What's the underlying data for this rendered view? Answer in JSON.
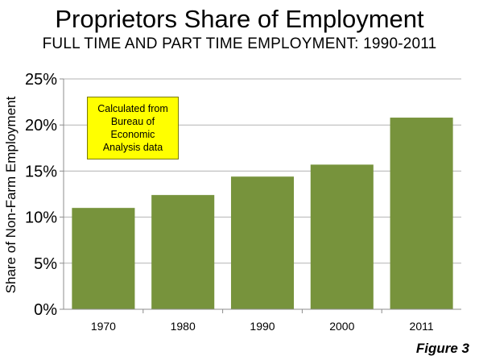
{
  "header": {
    "title": "Proprietors Share of Employment",
    "subtitle": "FULL TIME AND PART TIME EMPLOYMENT:  1990-2011"
  },
  "annotation": {
    "text": "Calculated from Bureau of Economic Analysis data",
    "lines": [
      "Calculated from",
      "Bureau of",
      "Economic",
      "Analysis data"
    ],
    "color": "#ffff00"
  },
  "figure_label": "Figure 3",
  "chart_data": {
    "type": "bar",
    "title": "Proprietors Share of Employment",
    "subtitle": "FULL TIME AND PART TIME EMPLOYMENT:  1990-2011",
    "xlabel": "",
    "ylabel": "Share of Non-Farm Employment",
    "categories": [
      "1970",
      "1980",
      "1990",
      "2000",
      "2011"
    ],
    "values": [
      11.0,
      12.4,
      14.4,
      15.7,
      20.8
    ],
    "ylim": [
      0,
      25
    ],
    "yticks": [
      0,
      5,
      10,
      15,
      20,
      25
    ],
    "ytick_labels": [
      "0%",
      "5%",
      "10%",
      "15%",
      "20%",
      "25%"
    ],
    "grid": true,
    "legend": "none",
    "bar_color": "#77933c",
    "grid_color": "#b3b3b3"
  }
}
